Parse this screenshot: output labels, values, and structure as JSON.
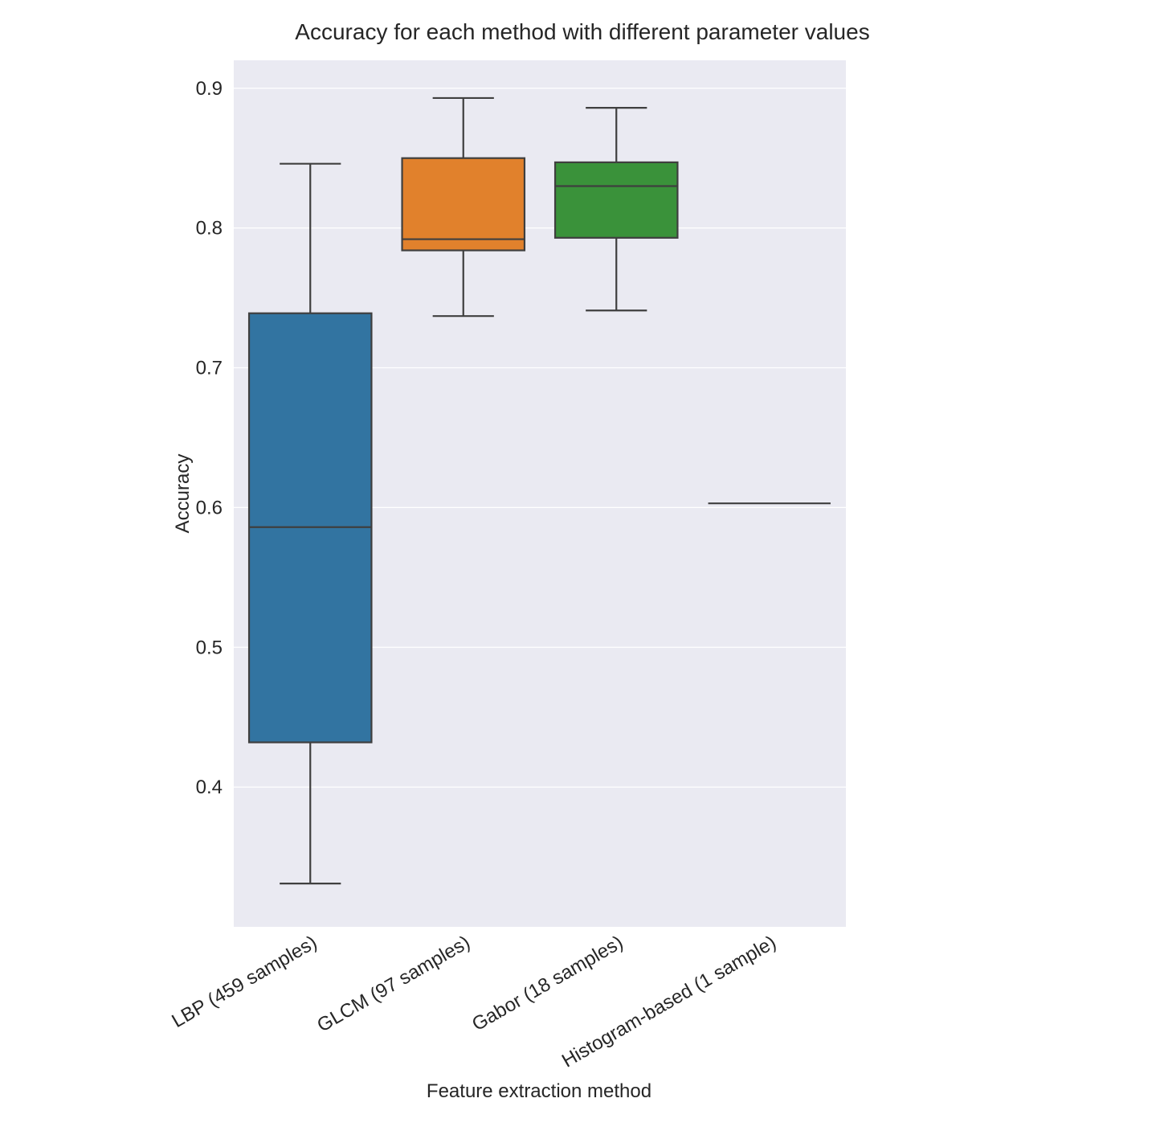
{
  "chart_data": {
    "type": "box",
    "title": "Accuracy for each method with different parameter values",
    "xlabel": "Feature extraction method",
    "ylabel": "Accuracy",
    "ylim": [
      0.3,
      0.92
    ],
    "yticks": [
      "0.4",
      "0.5",
      "0.6",
      "0.7",
      "0.8",
      "0.9"
    ],
    "grid": true,
    "background": "#eaeaf2",
    "categories": [
      "LBP (459 samples)",
      "GLCM (97 samples)",
      "Gabor (18 samples)",
      "Histogram-based (1 sample)"
    ],
    "boxes": [
      {
        "min": 0.331,
        "q1": 0.432,
        "median": 0.586,
        "q3": 0.739,
        "max": 0.846,
        "color": "#3274a1"
      },
      {
        "min": 0.737,
        "q1": 0.784,
        "median": 0.792,
        "q3": 0.85,
        "max": 0.893,
        "color": "#e1812c"
      },
      {
        "min": 0.741,
        "q1": 0.793,
        "median": 0.83,
        "q3": 0.847,
        "max": 0.886,
        "color": "#3a923a"
      },
      {
        "min": 0.603,
        "q1": 0.603,
        "median": 0.603,
        "q3": 0.603,
        "max": 0.603,
        "color": "#c03d3e"
      }
    ],
    "line_color": "#3f3f3f"
  }
}
